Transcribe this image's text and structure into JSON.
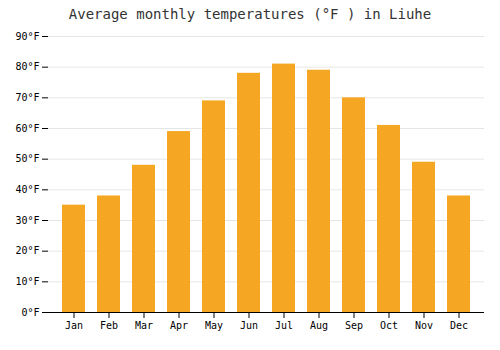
{
  "chart_data": {
    "type": "bar",
    "title": "Average monthly temperatures (°F ) in Liuhe",
    "categories": [
      "Jan",
      "Feb",
      "Mar",
      "Apr",
      "May",
      "Jun",
      "Jul",
      "Aug",
      "Sep",
      "Oct",
      "Nov",
      "Dec"
    ],
    "values": [
      35,
      38,
      48,
      59,
      69,
      78,
      81,
      79,
      70,
      61,
      49,
      38
    ],
    "color": "#F5A623",
    "ylim": [
      0,
      90
    ],
    "yticks": [
      {
        "value": 0,
        "label": "0°F"
      },
      {
        "value": 10,
        "label": "10°F"
      },
      {
        "value": 20,
        "label": "20°F"
      },
      {
        "value": 30,
        "label": "30°F"
      },
      {
        "value": 40,
        "label": "40°F"
      },
      {
        "value": 50,
        "label": "50°F"
      },
      {
        "value": 60,
        "label": "60°F"
      },
      {
        "value": 70,
        "label": "70°F"
      },
      {
        "value": 80,
        "label": "80°F"
      },
      {
        "value": 90,
        "label": "90°F"
      }
    ],
    "grid": true
  }
}
